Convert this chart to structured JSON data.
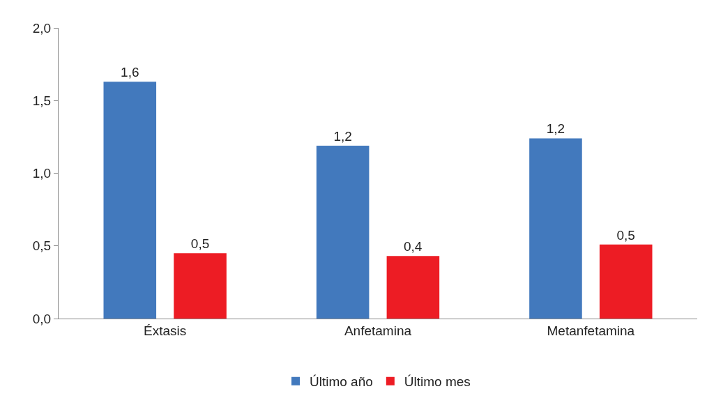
{
  "chart_data": {
    "type": "bar",
    "categories": [
      "Éxtasis",
      "Anfetamina",
      "Metanfetamina"
    ],
    "series": [
      {
        "name": "Último año",
        "color": "#4279bd",
        "values": [
          1.63,
          1.19,
          1.24
        ],
        "value_labels": [
          "1,6",
          "1,2",
          "1,2"
        ]
      },
      {
        "name": "Último mes",
        "color": "#ed1c24",
        "values": [
          0.45,
          0.43,
          0.51
        ],
        "value_labels": [
          "0,5",
          "0,4",
          "0,5"
        ]
      }
    ],
    "ylim": [
      0,
      2
    ],
    "yticks": [
      {
        "value": 0,
        "label": "0,0"
      },
      {
        "value": 0.5,
        "label": "0,5"
      },
      {
        "value": 1,
        "label": "1,0"
      },
      {
        "value": 1.5,
        "label": "1,5"
      },
      {
        "value": 2,
        "label": "2,0"
      }
    ],
    "grid": false,
    "legend": "bottom"
  }
}
